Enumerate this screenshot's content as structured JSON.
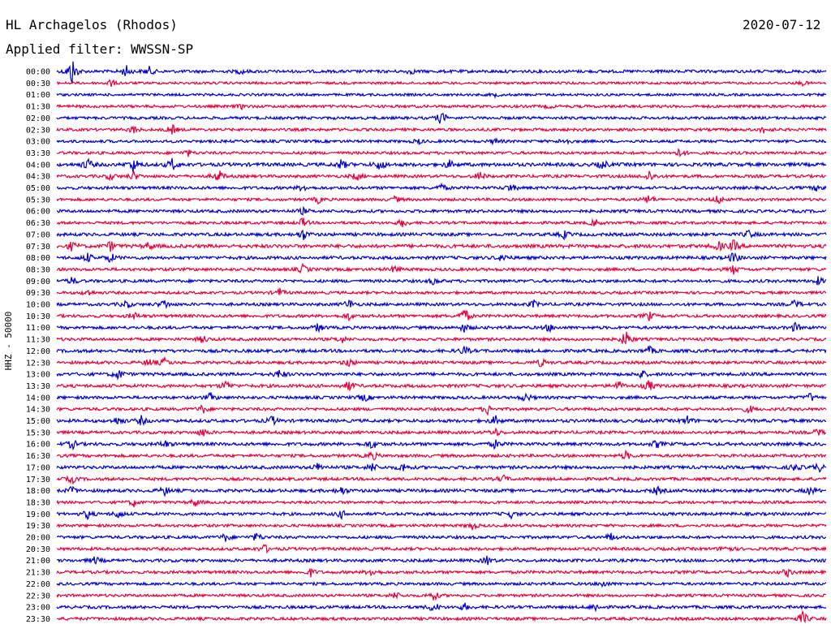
{
  "chart_data": {
    "type": "line",
    "title": "HL Archagelos (Rhodos)",
    "subtitle": "Applied filter: WWSSN-SP",
    "date": "2020-07-12",
    "ylabel": "HHZ - 50000",
    "colors": [
      "#0000d0",
      "#e8003c"
    ],
    "rows": [
      {
        "label": "00:00",
        "color": "#0000d0",
        "amp": 0.3,
        "events": [
          [
            0.02,
            3.0
          ],
          [
            0.09,
            1.2
          ],
          [
            0.12,
            0.9
          ],
          [
            0.24,
            0.5
          ],
          [
            0.46,
            0.5
          ]
        ]
      },
      {
        "label": "00:30",
        "color": "#e8003c",
        "amp": 0.25,
        "events": [
          [
            0.07,
            0.8
          ],
          [
            0.97,
            0.4
          ]
        ]
      },
      {
        "label": "01:00",
        "color": "#0000d0",
        "amp": 0.25,
        "events": [
          [
            0.57,
            0.3
          ]
        ]
      },
      {
        "label": "01:30",
        "color": "#e8003c",
        "amp": 0.28,
        "events": [
          [
            0.24,
            0.4
          ],
          [
            0.64,
            0.3
          ]
        ]
      },
      {
        "label": "02:00",
        "color": "#0000d0",
        "amp": 0.28,
        "events": [
          [
            0.5,
            1.4
          ]
        ]
      },
      {
        "label": "02:30",
        "color": "#e8003c",
        "amp": 0.28,
        "events": [
          [
            0.1,
            0.8
          ],
          [
            0.15,
            1.0
          ],
          [
            0.92,
            0.8
          ]
        ]
      },
      {
        "label": "03:00",
        "color": "#0000d0",
        "amp": 0.28,
        "events": [
          [
            0.47,
            0.5
          ],
          [
            0.57,
            0.6
          ],
          [
            0.66,
            0.8
          ]
        ]
      },
      {
        "label": "03:30",
        "color": "#e8003c",
        "amp": 0.28,
        "events": [
          [
            0.17,
            0.7
          ],
          [
            0.81,
            0.9
          ]
        ]
      },
      {
        "label": "04:00",
        "color": "#0000d0",
        "amp": 0.35,
        "events": [
          [
            0.04,
            1.2
          ],
          [
            0.1,
            1.6
          ],
          [
            0.15,
            1.2
          ],
          [
            0.37,
            1.0
          ],
          [
            0.42,
            1.2
          ],
          [
            0.51,
            0.8
          ],
          [
            0.71,
            0.9
          ]
        ]
      },
      {
        "label": "04:30",
        "color": "#e8003c",
        "amp": 0.3,
        "events": [
          [
            0.07,
            0.7
          ],
          [
            0.1,
            0.8
          ],
          [
            0.21,
            1.4
          ],
          [
            0.39,
            0.8
          ],
          [
            0.55,
            0.9
          ],
          [
            0.77,
            1.2
          ]
        ]
      },
      {
        "label": "05:00",
        "color": "#0000d0",
        "amp": 0.3,
        "events": [
          [
            0.32,
            0.7
          ],
          [
            0.5,
            0.8
          ],
          [
            0.59,
            0.9
          ],
          [
            0.99,
            0.8
          ]
        ]
      },
      {
        "label": "05:30",
        "color": "#e8003c",
        "amp": 0.28,
        "events": [
          [
            0.34,
            0.7
          ],
          [
            0.44,
            0.6
          ],
          [
            0.77,
            1.0
          ],
          [
            0.86,
            1.0
          ]
        ]
      },
      {
        "label": "06:00",
        "color": "#0000d0",
        "amp": 0.3,
        "events": [
          [
            0.32,
            0.6
          ]
        ]
      },
      {
        "label": "06:30",
        "color": "#e8003c",
        "amp": 0.28,
        "events": [
          [
            0.32,
            1.0
          ],
          [
            0.45,
            0.9
          ],
          [
            0.7,
            0.8
          ]
        ]
      },
      {
        "label": "07:00",
        "color": "#0000d0",
        "amp": 0.32,
        "events": [
          [
            0.32,
            1.1
          ],
          [
            0.66,
            0.8
          ],
          [
            0.9,
            0.9
          ]
        ]
      },
      {
        "label": "07:30",
        "color": "#e8003c",
        "amp": 0.35,
        "events": [
          [
            0.02,
            1.0
          ],
          [
            0.07,
            1.0
          ],
          [
            0.12,
            0.8
          ],
          [
            0.86,
            1.0
          ],
          [
            0.88,
            1.2
          ]
        ]
      },
      {
        "label": "08:00",
        "color": "#0000d0",
        "amp": 0.32,
        "events": [
          [
            0.04,
            0.9
          ],
          [
            0.07,
            1.0
          ],
          [
            0.58,
            0.9
          ],
          [
            0.88,
            1.2
          ]
        ]
      },
      {
        "label": "08:30",
        "color": "#e8003c",
        "amp": 0.3,
        "events": [
          [
            0.32,
            0.9
          ],
          [
            0.44,
            0.8
          ],
          [
            0.88,
            0.9
          ]
        ]
      },
      {
        "label": "09:00",
        "color": "#0000d0",
        "amp": 0.3,
        "events": [
          [
            0.02,
            0.8
          ],
          [
            0.49,
            0.7
          ],
          [
            0.99,
            0.8
          ]
        ]
      },
      {
        "label": "09:30",
        "color": "#e8003c",
        "amp": 0.28,
        "events": [
          [
            0.04,
            0.7
          ],
          [
            0.29,
            0.8
          ]
        ]
      },
      {
        "label": "10:00",
        "color": "#0000d0",
        "amp": 0.3,
        "events": [
          [
            0.09,
            0.9
          ],
          [
            0.14,
            1.0
          ],
          [
            0.38,
            1.0
          ],
          [
            0.62,
            0.7
          ],
          [
            0.96,
            0.9
          ]
        ]
      },
      {
        "label": "10:30",
        "color": "#e8003c",
        "amp": 0.3,
        "events": [
          [
            0.1,
            0.8
          ],
          [
            0.38,
            0.8
          ],
          [
            0.53,
            1.8
          ],
          [
            0.77,
            0.9
          ]
        ]
      },
      {
        "label": "11:00",
        "color": "#0000d0",
        "amp": 0.3,
        "events": [
          [
            0.34,
            0.9
          ],
          [
            0.53,
            0.9
          ],
          [
            0.64,
            0.8
          ],
          [
            0.96,
            1.0
          ]
        ]
      },
      {
        "label": "11:30",
        "color": "#e8003c",
        "amp": 0.3,
        "events": [
          [
            0.19,
            0.8
          ],
          [
            0.37,
            0.8
          ],
          [
            0.74,
            2.0
          ]
        ]
      },
      {
        "label": "12:00",
        "color": "#0000d0",
        "amp": 0.32,
        "events": [
          [
            0.53,
            0.9
          ],
          [
            0.77,
            0.9
          ]
        ]
      },
      {
        "label": "12:30",
        "color": "#e8003c",
        "amp": 0.3,
        "events": [
          [
            0.12,
            0.8
          ],
          [
            0.14,
            0.9
          ],
          [
            0.38,
            0.9
          ],
          [
            0.63,
            0.9
          ]
        ]
      },
      {
        "label": "13:00",
        "color": "#0000d0",
        "amp": 0.32,
        "events": [
          [
            0.08,
            1.1
          ],
          [
            0.29,
            1.0
          ],
          [
            0.76,
            0.9
          ]
        ]
      },
      {
        "label": "13:30",
        "color": "#e8003c",
        "amp": 0.32,
        "events": [
          [
            0.22,
            1.0
          ],
          [
            0.38,
            1.1
          ],
          [
            0.73,
            1.0
          ],
          [
            0.77,
            1.2
          ]
        ]
      },
      {
        "label": "14:00",
        "color": "#0000d0",
        "amp": 0.3,
        "events": [
          [
            0.2,
            0.9
          ],
          [
            0.4,
            0.8
          ],
          [
            0.61,
            0.9
          ],
          [
            0.98,
            0.9
          ]
        ]
      },
      {
        "label": "14:30",
        "color": "#e8003c",
        "amp": 0.3,
        "events": [
          [
            0.19,
            0.9
          ],
          [
            0.56,
            1.0
          ],
          [
            0.9,
            0.8
          ]
        ]
      },
      {
        "label": "15:00",
        "color": "#0000d0",
        "amp": 0.32,
        "events": [
          [
            0.08,
            0.9
          ],
          [
            0.11,
            0.9
          ],
          [
            0.28,
            1.0
          ],
          [
            0.57,
            1.0
          ],
          [
            0.82,
            0.9
          ]
        ]
      },
      {
        "label": "15:30",
        "color": "#e8003c",
        "amp": 0.3,
        "events": [
          [
            0.19,
            0.9
          ],
          [
            0.57,
            0.9
          ],
          [
            0.99,
            0.8
          ]
        ]
      },
      {
        "label": "16:00",
        "color": "#0000d0",
        "amp": 0.32,
        "events": [
          [
            0.02,
            1.0
          ],
          [
            0.14,
            0.8
          ],
          [
            0.41,
            1.0
          ],
          [
            0.57,
            0.9
          ],
          [
            0.78,
            0.8
          ]
        ]
      },
      {
        "label": "16:30",
        "color": "#e8003c",
        "amp": 0.3,
        "events": [
          [
            0.41,
            1.0
          ],
          [
            0.74,
            0.9
          ]
        ]
      },
      {
        "label": "17:00",
        "color": "#0000d0",
        "amp": 0.32,
        "events": [
          [
            0.34,
            0.9
          ],
          [
            0.41,
            1.0
          ],
          [
            0.45,
            0.9
          ],
          [
            0.96,
            0.8
          ],
          [
            0.99,
            0.9
          ]
        ]
      },
      {
        "label": "17:30",
        "color": "#e8003c",
        "amp": 0.3,
        "events": [
          [
            0.02,
            0.8
          ],
          [
            0.58,
            0.8
          ]
        ]
      },
      {
        "label": "18:00",
        "color": "#0000d0",
        "amp": 0.32,
        "events": [
          [
            0.02,
            0.8
          ],
          [
            0.14,
            0.9
          ],
          [
            0.37,
            0.9
          ],
          [
            0.78,
            0.8
          ],
          [
            0.98,
            0.9
          ]
        ]
      },
      {
        "label": "18:30",
        "color": "#e8003c",
        "amp": 0.28,
        "events": [
          [
            0.1,
            0.8
          ],
          [
            0.18,
            0.8
          ]
        ]
      },
      {
        "label": "19:00",
        "color": "#0000d0",
        "amp": 0.3,
        "events": [
          [
            0.04,
            0.9
          ],
          [
            0.08,
            0.9
          ],
          [
            0.37,
            0.8
          ],
          [
            0.59,
            0.8
          ]
        ]
      },
      {
        "label": "19:30",
        "color": "#e8003c",
        "amp": 0.28,
        "events": [
          [
            0.54,
            0.8
          ]
        ]
      },
      {
        "label": "20:00",
        "color": "#0000d0",
        "amp": 0.3,
        "events": [
          [
            0.22,
            0.9
          ],
          [
            0.26,
            0.9
          ],
          [
            0.72,
            0.8
          ]
        ]
      },
      {
        "label": "20:30",
        "color": "#e8003c",
        "amp": 0.3,
        "events": [
          [
            0.27,
            0.9
          ],
          [
            0.87,
            1.0
          ]
        ]
      },
      {
        "label": "21:00",
        "color": "#0000d0",
        "amp": 0.3,
        "events": [
          [
            0.05,
            0.8
          ],
          [
            0.56,
            0.9
          ]
        ]
      },
      {
        "label": "21:30",
        "color": "#e8003c",
        "amp": 0.3,
        "events": [
          [
            0.33,
            0.8
          ],
          [
            0.41,
            0.9
          ],
          [
            0.95,
            0.8
          ]
        ]
      },
      {
        "label": "22:00",
        "color": "#0000d0",
        "amp": 0.28,
        "events": [
          [
            0.71,
            0.7
          ]
        ]
      },
      {
        "label": "22:30",
        "color": "#e8003c",
        "amp": 0.28,
        "events": [
          [
            0.44,
            0.8
          ],
          [
            0.49,
            1.0
          ]
        ]
      },
      {
        "label": "23:00",
        "color": "#0000d0",
        "amp": 0.3,
        "events": [
          [
            0.49,
            1.2
          ],
          [
            0.53,
            0.7
          ],
          [
            0.7,
            0.8
          ]
        ]
      },
      {
        "label": "23:30",
        "color": "#e8003c",
        "amp": 0.3,
        "events": [
          [
            0.97,
            1.5
          ]
        ]
      }
    ]
  }
}
